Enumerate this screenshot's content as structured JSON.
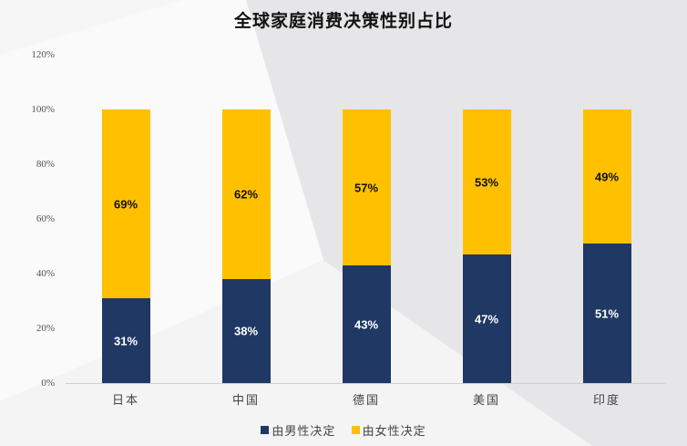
{
  "chart_data": {
    "type": "bar",
    "stacked": true,
    "title": "全球家庭消费决策性别占比",
    "categories": [
      "日本",
      "中国",
      "德国",
      "美国",
      "印度"
    ],
    "series": [
      {
        "name": "由男性决定",
        "values": [
          31,
          38,
          43,
          47,
          51
        ],
        "labels": [
          "31%",
          "38%",
          "43%",
          "47%",
          "51%"
        ],
        "color": "#1f3864"
      },
      {
        "name": "由女性决定",
        "values": [
          69,
          62,
          57,
          53,
          49
        ],
        "labels": [
          "69%",
          "62%",
          "57%",
          "53%",
          "49%"
        ],
        "color": "#ffc000"
      }
    ],
    "xlabel": "",
    "ylabel": "",
    "ylim": [
      0,
      120
    ],
    "yticks": [
      "0%",
      "20%",
      "40%",
      "60%",
      "80%",
      "100%",
      "120%"
    ],
    "grid": false,
    "legend_position": "bottom"
  },
  "colors": {
    "male": "#1f3864",
    "female": "#ffc000",
    "male_label_text": "#ffffff",
    "female_label_text": "#111111"
  }
}
